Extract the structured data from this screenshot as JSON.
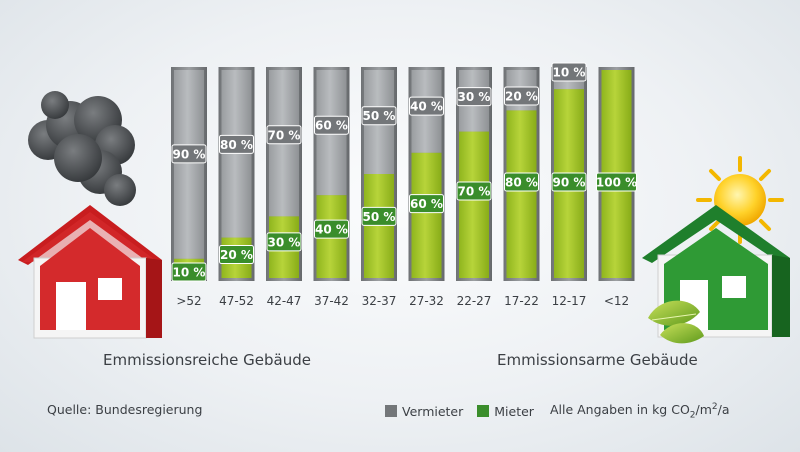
{
  "chart_data": {
    "type": "bar",
    "stacked": true,
    "categories": [
      ">52",
      "47-52",
      "42-47",
      "37-42",
      "32-37",
      "27-32",
      "22-27",
      "17-22",
      "12-17",
      "<12"
    ],
    "series": [
      {
        "name": "Vermieter",
        "color": "#737679",
        "values": [
          90,
          80,
          70,
          60,
          50,
          40,
          30,
          20,
          10,
          0
        ]
      },
      {
        "name": "Mieter",
        "color": "#3a8d2b",
        "values": [
          10,
          20,
          30,
          40,
          50,
          60,
          70,
          80,
          90,
          100
        ]
      }
    ],
    "vermieter_labels": [
      "90 %",
      "80 %",
      "70 %",
      "60 %",
      "50 %",
      "40 %",
      "30 %",
      "20 %",
      "10 %"
    ],
    "mieter_labels": [
      "10 %",
      "20 %",
      "30 %",
      "40 %",
      "50 %",
      "60 %",
      "70 %",
      "80 %",
      "90 %",
      "100 %"
    ],
    "ylim": [
      0,
      100
    ],
    "ylabel": "",
    "xlabel": ""
  },
  "captions": {
    "left": "Emmissionsreiche Gebäude",
    "right": "Emmissionsarme Gebäude"
  },
  "footer": {
    "source": "Quelle: Bundesregierung",
    "legend_vermieter": "Vermieter",
    "legend_mieter": "Mieter",
    "units_prefix": "Alle Angaben in kg CO",
    "units_sub": "2",
    "units_mid": "/m",
    "units_sup": "2",
    "units_suffix": "/a"
  },
  "colors": {
    "vermieter": "#737679",
    "mieter": "#3a8d2b",
    "bar_gray": "#b5b8bb",
    "bar_green": "#a9c82b"
  }
}
